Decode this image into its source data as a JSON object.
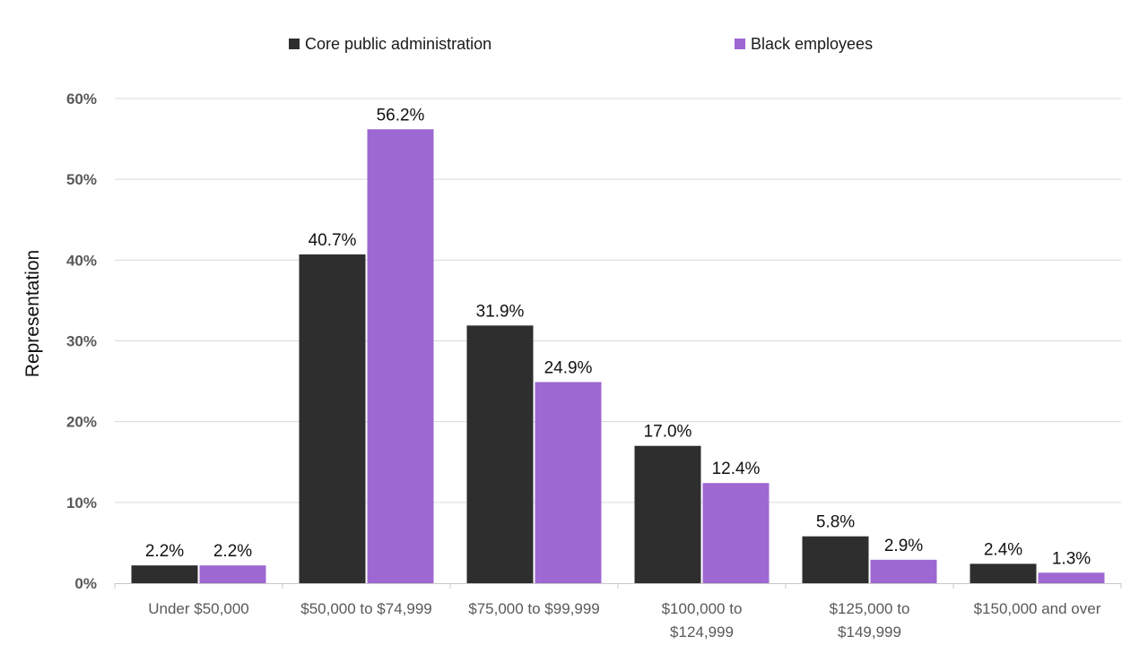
{
  "chart_data": {
    "type": "bar",
    "title": "",
    "xlabel": "",
    "ylabel": "Representation",
    "ylim": [
      0,
      60
    ],
    "yticks": [
      0,
      10,
      20,
      30,
      40,
      50,
      60
    ],
    "ytick_labels": [
      "0%",
      "10%",
      "20%",
      "30%",
      "40%",
      "50%",
      "60%"
    ],
    "grid": true,
    "legend_position": "top",
    "categories": [
      [
        "Under $50,000"
      ],
      [
        "$50,000 to $74,999"
      ],
      [
        "$75,000 to $99,999"
      ],
      [
        "$100,000 to",
        "$124,999"
      ],
      [
        "$125,000 to",
        "$149,999"
      ],
      [
        "$150,000 and over"
      ]
    ],
    "series": [
      {
        "name": "Core public administration",
        "color": "#2e2e2e",
        "values": [
          2.2,
          40.7,
          31.9,
          17.0,
          5.8,
          2.4
        ],
        "labels": [
          "2.2%",
          "40.7%",
          "31.9%",
          "17.0%",
          "5.8%",
          "2.4%"
        ]
      },
      {
        "name": "Black employees",
        "color": "#9e68d3",
        "values": [
          2.2,
          56.2,
          24.9,
          12.4,
          2.9,
          1.3
        ],
        "labels": [
          "2.2%",
          "56.2%",
          "24.9%",
          "12.4%",
          "2.9%",
          "1.3%"
        ]
      }
    ]
  }
}
